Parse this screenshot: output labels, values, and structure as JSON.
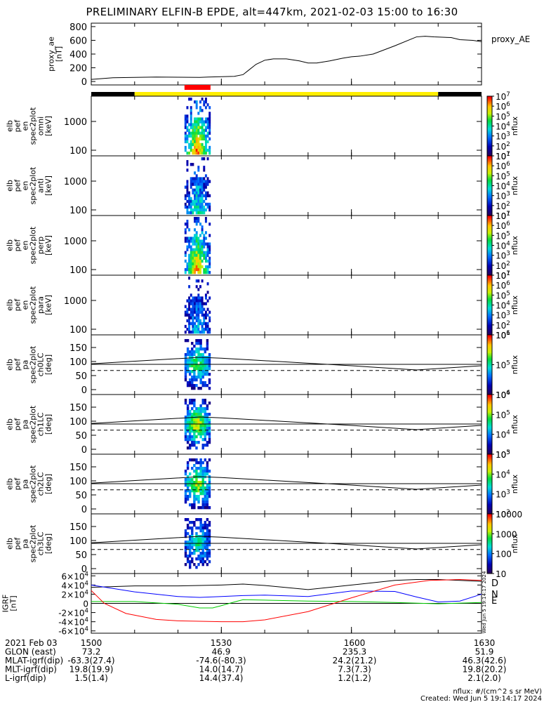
{
  "title": "PRELIMINARY ELFIN-B EPDE, alt=447km, 2021-02-03 15:00 to 16:30",
  "chart_data": {
    "type": "spectrogram",
    "time_axis": {
      "start": "15:00",
      "end": "16:30",
      "ticks": [
        "1500",
        "1530",
        "1600",
        "1630"
      ]
    },
    "ae_panel": {
      "ylabel": [
        "proxy_ae",
        "[nT]"
      ],
      "yticks": [
        0,
        200,
        400,
        600,
        800
      ],
      "ylim": [
        -50,
        850
      ],
      "legend": "proxy_AE",
      "series": {
        "t": [
          0,
          5,
          10,
          15,
          20,
          25,
          27,
          30,
          33,
          35,
          36,
          38,
          40,
          42,
          45,
          48,
          50,
          52,
          55,
          58,
          60,
          62,
          65,
          70,
          75,
          77,
          79,
          83,
          85,
          88,
          90
        ],
        "v": [
          30,
          55,
          60,
          65,
          62,
          60,
          65,
          70,
          75,
          100,
          150,
          250,
          310,
          330,
          330,
          300,
          270,
          270,
          300,
          340,
          360,
          370,
          400,
          520,
          650,
          660,
          650,
          640,
          610,
          600,
          580
        ]
      }
    },
    "status_bar": [
      {
        "from": 0,
        "to": 10,
        "color": "#000000"
      },
      {
        "from": 10,
        "to": 80,
        "color": "#ffee00"
      },
      {
        "from": 80,
        "to": 90,
        "color": "#000000"
      }
    ],
    "science_zone": {
      "from": 21.5,
      "to": 27.5,
      "color": "#ff0000"
    },
    "burst_span": {
      "from": 21.5,
      "to": 27.5
    },
    "energy_panels": [
      {
        "ylabel": [
          "elb",
          "pef",
          "en",
          "spec2plot",
          "omni",
          "[keV]"
        ],
        "yticks": [
          100,
          1000
        ],
        "zticks": [
          "10^1",
          "10^2",
          "10^3",
          "10^4",
          "10^5",
          "10^6",
          "10^7"
        ],
        "zunit": "nflux",
        "intensity": 1.0
      },
      {
        "ylabel": [
          "elb",
          "pef",
          "en",
          "spec2plot",
          "anti",
          "[keV]"
        ],
        "yticks": [
          100,
          1000
        ],
        "zticks": [
          "10^1",
          "10^2",
          "10^3",
          "10^4",
          "10^5",
          "10^6",
          "10^7"
        ],
        "zunit": "nflux",
        "intensity": 0.55
      },
      {
        "ylabel": [
          "elb",
          "pef",
          "en",
          "spec2plot",
          "perp",
          "[keV]"
        ],
        "yticks": [
          100,
          1000
        ],
        "zticks": [
          "10^1",
          "10^2",
          "10^3",
          "10^4",
          "10^5",
          "10^6",
          "10^7"
        ],
        "zunit": "nflux",
        "intensity": 0.95
      },
      {
        "ylabel": [
          "elb",
          "pef",
          "en",
          "spec2plot",
          "para",
          "[keV]"
        ],
        "yticks": [
          100,
          1000
        ],
        "zticks": [
          "10^1",
          "10^2",
          "10^3",
          "10^4",
          "10^5",
          "10^6",
          "10^7"
        ],
        "zunit": "nflux",
        "intensity": 0.45
      }
    ],
    "pitch_panels": [
      {
        "ylabel": [
          "elb",
          "pef",
          "pa",
          "spec2plot",
          "ch0LC",
          "[deg]"
        ],
        "yticks": [
          0,
          50,
          100,
          150
        ],
        "zticks": [
          "10^4",
          "10^5",
          "10^6"
        ],
        "zunit": "nflux",
        "intensity": 0.7
      },
      {
        "ylabel": [
          "elb",
          "pef",
          "pa",
          "spec2plot",
          "ch1LC",
          "[deg]"
        ],
        "yticks": [
          0,
          50,
          100,
          150
        ],
        "zticks": [
          "10^3",
          "10^4",
          "10^5",
          "10^6"
        ],
        "zunit": "nflux",
        "intensity": 0.85
      },
      {
        "ylabel": [
          "elb",
          "pef",
          "pa",
          "spec2plot",
          "ch2LC",
          "[deg]"
        ],
        "yticks": [
          0,
          50,
          100,
          150
        ],
        "zticks": [
          "10^2",
          "10^3",
          "10^4",
          "10^5"
        ],
        "zunit": "nflux",
        "intensity": 0.8
      },
      {
        "ylabel": [
          "elb",
          "pef",
          "pa",
          "spec2plot",
          "ch3LC",
          "[deg]"
        ],
        "yticks": [
          0,
          50,
          100,
          150
        ],
        "zticks": [
          "10",
          "100",
          "1000",
          "10000"
        ],
        "zunit": "nflux",
        "intensity": 0.6
      }
    ],
    "loss_cone": {
      "t": [
        0,
        25,
        30,
        60,
        75,
        90
      ],
      "upper": [
        92,
        115,
        112,
        85,
        70,
        85
      ],
      "lower": [
        68,
        68,
        68,
        68,
        68,
        68
      ],
      "reference": 90
    },
    "igrf_panel": {
      "ylabel": [
        "IGRF",
        "[nT]"
      ],
      "yticks": [
        "6×10^4",
        "4×10^4",
        "2×10^4",
        "0",
        "-2×10^4",
        "-4×10^4",
        "-6×10^4"
      ],
      "ylim": [
        -65000,
        65000
      ],
      "side_stamp": "Wed Jun 5 19:14:17 2024",
      "series": [
        {
          "name": "D",
          "color": "#000000",
          "t": [
            0,
            10,
            20,
            30,
            35,
            40,
            50,
            60,
            70,
            75,
            80,
            85,
            90
          ],
          "v": [
            35000,
            38000,
            38000,
            40000,
            42000,
            39000,
            30000,
            40000,
            50000,
            52000,
            52000,
            50000,
            48000
          ]
        },
        {
          "name": "N",
          "color": "#0000ff",
          "t": [
            0,
            10,
            20,
            25,
            30,
            35,
            40,
            50,
            60,
            70,
            75,
            80,
            85,
            90
          ],
          "v": [
            40000,
            25000,
            15000,
            13000,
            15000,
            17000,
            18000,
            15000,
            27000,
            26000,
            14000,
            3000,
            5000,
            20000
          ]
        },
        {
          "name": "E",
          "color": "#00cc00",
          "t": [
            0,
            10,
            20,
            25,
            28,
            30,
            33,
            35,
            40,
            50,
            60,
            70,
            80,
            90
          ],
          "v": [
            4000,
            4000,
            -2000,
            -10000,
            -10000,
            -5000,
            3000,
            8000,
            7000,
            5000,
            4000,
            2000,
            -1000,
            2000
          ]
        },
        {
          "name": "",
          "color": "#ff0000",
          "t": [
            0,
            3,
            8,
            15,
            20,
            25,
            30,
            35,
            40,
            50,
            60,
            70,
            78,
            85,
            90
          ],
          "v": [
            28000,
            0,
            -22000,
            -35000,
            -38000,
            -39000,
            -40000,
            -40000,
            -36000,
            -18000,
            12000,
            40000,
            50000,
            52000,
            50000
          ]
        }
      ]
    },
    "footer": {
      "rows": [
        {
          "label": "2021 Feb 03",
          "values": [
            "1500",
            "1530",
            "1600",
            "1630"
          ]
        },
        {
          "label": "GLON (east)",
          "values": [
            "73.2",
            "46.9",
            "235.3",
            "51.9"
          ]
        },
        {
          "label": "MLAT-igrf(dip)",
          "values": [
            "-63.3(27.4)",
            "-74.6(-80.3)",
            "24.2(21.2)",
            "46.3(42.6)"
          ]
        },
        {
          "label": "MLT-igrf(dip)",
          "values": [
            "19.8(19.9)",
            "14.0(14.7)",
            "7.3(7.3)",
            "19.8(20.2)"
          ]
        },
        {
          "label": "L-igrf(dip)",
          "values": [
            "1.5(1.4)",
            "14.4(37.4)",
            "1.2(1.2)",
            "2.1(2.0)"
          ]
        }
      ],
      "units_note": "nflux: #/(cm^2 s sr MeV)",
      "created": "Created: Wed Jun  5 19:14:17 2024"
    }
  }
}
